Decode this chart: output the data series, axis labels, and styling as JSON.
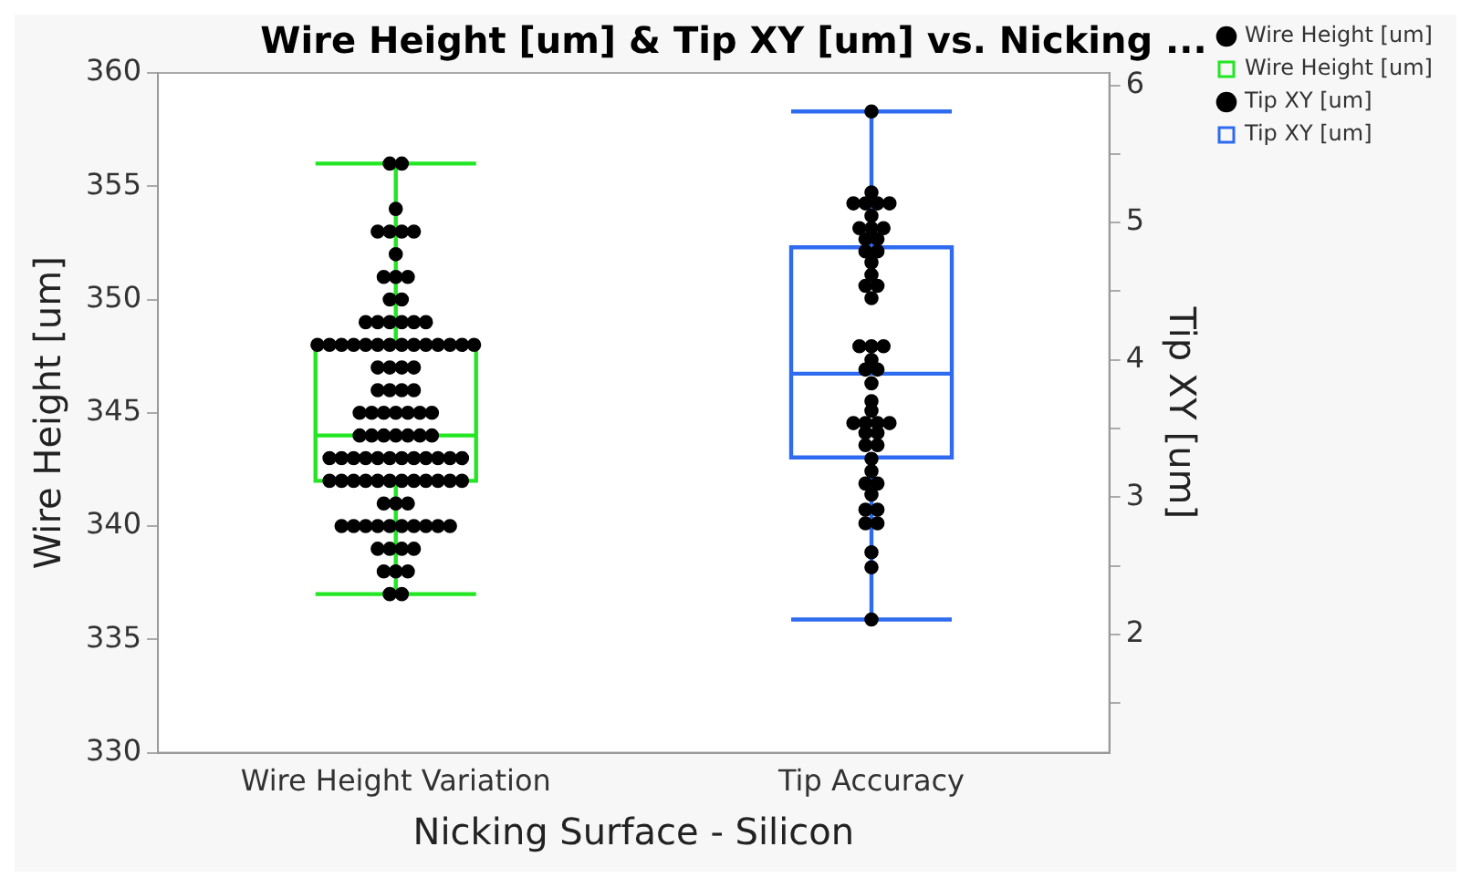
{
  "chart_data": {
    "type": "box",
    "title": "Wire Height [um] & Tip XY [um] vs. Nicking ...",
    "xlabel": "Nicking Surface - Silicon",
    "ylabel": "Wire Height [um]",
    "y2label": "Tip XY [um]",
    "categories": [
      "Wire Height Variation",
      "Tip Accuracy"
    ],
    "ylim": [
      330,
      360
    ],
    "yticks": [
      330,
      335,
      340,
      345,
      350,
      355,
      360
    ],
    "y2lim": [
      1.14,
      6.09
    ],
    "y2ticks": [
      {
        "value": 1.5,
        "label": null
      },
      2,
      {
        "value": 2.5,
        "label": null
      },
      3,
      {
        "value": 3.5,
        "label": null
      },
      4,
      {
        "value": 4.5,
        "label": null
      },
      5,
      {
        "value": 5.5,
        "label": null
      },
      6
    ],
    "grid": false,
    "legend": "top right",
    "marker": "circle",
    "series": [
      {
        "name": "Wire Height [um]",
        "type": "scatter",
        "color": "#000000",
        "x": [
          "Wire Height Variation",
          "Wire Height Variation",
          "Wire Height Variation",
          "Wire Height Variation",
          "Wire Height Variation",
          "Wire Height Variation",
          "Wire Height Variation",
          "Wire Height Variation",
          "Wire Height Variation",
          "Wire Height Variation",
          "Wire Height Variation",
          "Wire Height Variation",
          "Wire Height Variation",
          "Wire Height Variation",
          "Wire Height Variation",
          "Wire Height Variation",
          "Wire Height Variation",
          "Wire Height Variation",
          "Wire Height Variation",
          "Wire Height Variation",
          "Wire Height Variation",
          "Wire Height Variation",
          "Wire Height Variation",
          "Wire Height Variation",
          "Wire Height Variation",
          "Wire Height Variation",
          "Wire Height Variation",
          "Wire Height Variation",
          "Wire Height Variation",
          "Wire Height Variation",
          "Wire Height Variation",
          "Wire Height Variation",
          "Wire Height Variation",
          "Wire Height Variation",
          "Wire Height Variation",
          "Wire Height Variation",
          "Wire Height Variation",
          "Wire Height Variation",
          "Wire Height Variation",
          "Wire Height Variation",
          "Wire Height Variation",
          "Wire Height Variation",
          "Wire Height Variation",
          "Wire Height Variation",
          "Wire Height Variation",
          "Wire Height Variation",
          "Wire Height Variation",
          "Wire Height Variation",
          "Wire Height Variation",
          "Wire Height Variation",
          "Wire Height Variation",
          "Wire Height Variation",
          "Wire Height Variation",
          "Wire Height Variation",
          "Wire Height Variation",
          "Wire Height Variation",
          "Wire Height Variation",
          "Wire Height Variation",
          "Wire Height Variation",
          "Wire Height Variation",
          "Wire Height Variation",
          "Wire Height Variation",
          "Wire Height Variation",
          "Wire Height Variation",
          "Wire Height Variation",
          "Wire Height Variation",
          "Wire Height Variation",
          "Wire Height Variation",
          "Wire Height Variation",
          "Wire Height Variation",
          "Wire Height Variation",
          "Wire Height Variation",
          "Wire Height Variation",
          "Wire Height Variation",
          "Wire Height Variation",
          "Wire Height Variation",
          "Wire Height Variation",
          "Wire Height Variation",
          "Wire Height Variation",
          "Wire Height Variation",
          "Wire Height Variation",
          "Wire Height Variation",
          "Wire Height Variation",
          "Wire Height Variation",
          "Wire Height Variation",
          "Wire Height Variation",
          "Wire Height Variation",
          "Wire Height Variation",
          "Wire Height Variation",
          "Wire Height Variation",
          "Wire Height Variation",
          "Wire Height Variation",
          "Wire Height Variation",
          "Wire Height Variation",
          "Wire Height Variation",
          "Wire Height Variation",
          "Wire Height Variation",
          "Wire Height Variation",
          "Wire Height Variation",
          "Wire Height Variation",
          "Wire Height Variation"
        ],
        "values": [
          356,
          356,
          354,
          353,
          353,
          353,
          353,
          352,
          351,
          351,
          351,
          350,
          350,
          349,
          349,
          349,
          349,
          349,
          349,
          348,
          348,
          348,
          348,
          348,
          348,
          348,
          348,
          348,
          348,
          348,
          348,
          348,
          348,
          347,
          347,
          347,
          347,
          346,
          346,
          346,
          346,
          345,
          345,
          345,
          345,
          345,
          345,
          345,
          344,
          344,
          344,
          344,
          344,
          344,
          344,
          343,
          343,
          343,
          343,
          343,
          343,
          343,
          343,
          343,
          343,
          343,
          343,
          342,
          342,
          342,
          342,
          342,
          342,
          342,
          342,
          342,
          342,
          342,
          342,
          341,
          341,
          341,
          340,
          340,
          340,
          340,
          340,
          340,
          340,
          340,
          340,
          340,
          339,
          339,
          339,
          339,
          338,
          338,
          338,
          337,
          337
        ]
      },
      {
        "name": "Wire Height [um]",
        "type": "box",
        "color": "#22e622",
        "boxes": [
          {
            "low": 337,
            "q1": 342,
            "median": 344,
            "q3": 348,
            "high": 356
          },
          null
        ]
      },
      {
        "name": "Tip XY [um]",
        "type": "scatter",
        "axis": "y2",
        "color": "#000000",
        "x": [
          "Tip Accuracy",
          "Tip Accuracy",
          "Tip Accuracy",
          "Tip Accuracy",
          "Tip Accuracy",
          "Tip Accuracy",
          "Tip Accuracy",
          "Tip Accuracy",
          "Tip Accuracy",
          "Tip Accuracy",
          "Tip Accuracy",
          "Tip Accuracy",
          "Tip Accuracy",
          "Tip Accuracy",
          "Tip Accuracy",
          "Tip Accuracy",
          "Tip Accuracy",
          "Tip Accuracy",
          "Tip Accuracy",
          "Tip Accuracy",
          "Tip Accuracy",
          "Tip Accuracy",
          "Tip Accuracy",
          "Tip Accuracy",
          "Tip Accuracy",
          "Tip Accuracy",
          "Tip Accuracy",
          "Tip Accuracy",
          "Tip Accuracy",
          "Tip Accuracy",
          "Tip Accuracy",
          "Tip Accuracy",
          "Tip Accuracy",
          "Tip Accuracy",
          "Tip Accuracy",
          "Tip Accuracy",
          "Tip Accuracy",
          "Tip Accuracy",
          "Tip Accuracy",
          "Tip Accuracy",
          "Tip Accuracy",
          "Tip Accuracy",
          "Tip Accuracy",
          "Tip Accuracy",
          "Tip Accuracy",
          "Tip Accuracy",
          "Tip Accuracy",
          "Tip Accuracy"
        ],
        "values": [
          5.81,
          5.22,
          5.14,
          5.14,
          5.14,
          5.14,
          5.05,
          4.96,
          4.96,
          4.96,
          4.88,
          4.88,
          4.79,
          4.79,
          4.71,
          4.62,
          4.54,
          4.54,
          4.45,
          4.1,
          4.1,
          4.1,
          4.0,
          3.93,
          3.93,
          3.83,
          3.7,
          3.63,
          3.54,
          3.54,
          3.54,
          3.54,
          3.47,
          3.47,
          3.38,
          3.38,
          3.28,
          3.19,
          3.1,
          3.1,
          3.02,
          2.91,
          2.91,
          2.81,
          2.81,
          2.6,
          2.49,
          2.11
        ]
      },
      {
        "name": "Tip XY [um]",
        "type": "box",
        "axis": "y2",
        "color": "#2f6bf0",
        "boxes": [
          null,
          {
            "low": 2.11,
            "q1": 3.29,
            "median": 3.9,
            "q3": 4.82,
            "high": 5.81
          }
        ]
      }
    ]
  }
}
